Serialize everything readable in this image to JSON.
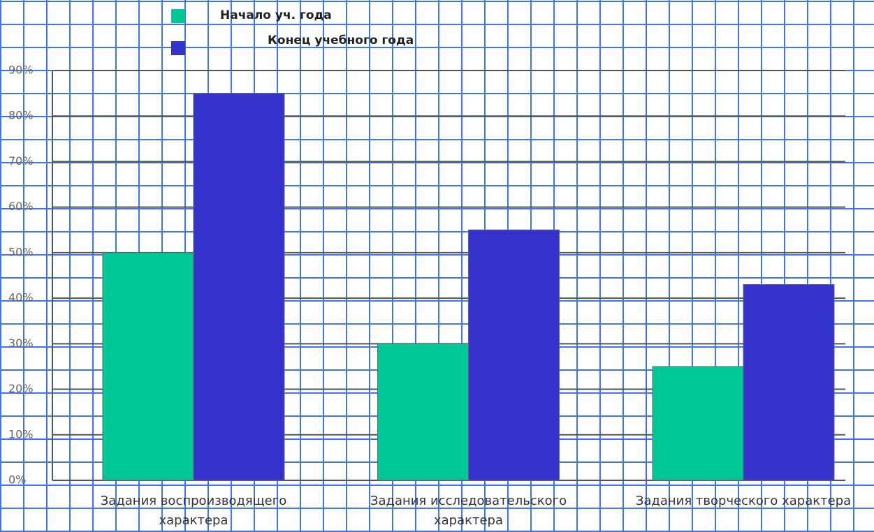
{
  "chart_data": {
    "type": "bar",
    "categories": [
      "Задания воспроизводящего характера",
      "Задания исследовательского характера",
      "Задания творческого характера"
    ],
    "series": [
      {
        "name": "Начало уч. года",
        "color": "#00c896",
        "values": [
          50,
          30,
          25
        ]
      },
      {
        "name": "Конец учебного года",
        "color": "#3333cc",
        "values": [
          85,
          55,
          43
        ]
      }
    ],
    "ylim": [
      0,
      90
    ],
    "yticks": [
      {
        "value": 0,
        "label": "0%"
      },
      {
        "value": 10,
        "label": "10%"
      },
      {
        "value": 20,
        "label": "20%"
      },
      {
        "value": 30,
        "label": "30%"
      },
      {
        "value": 40,
        "label": "40%"
      },
      {
        "value": 50,
        "label": "50%"
      },
      {
        "value": 60,
        "label": "60%"
      },
      {
        "value": 70,
        "label": "70%"
      },
      {
        "value": 80,
        "label": "80%"
      },
      {
        "value": 90,
        "label": "90%"
      }
    ],
    "grid": true
  }
}
